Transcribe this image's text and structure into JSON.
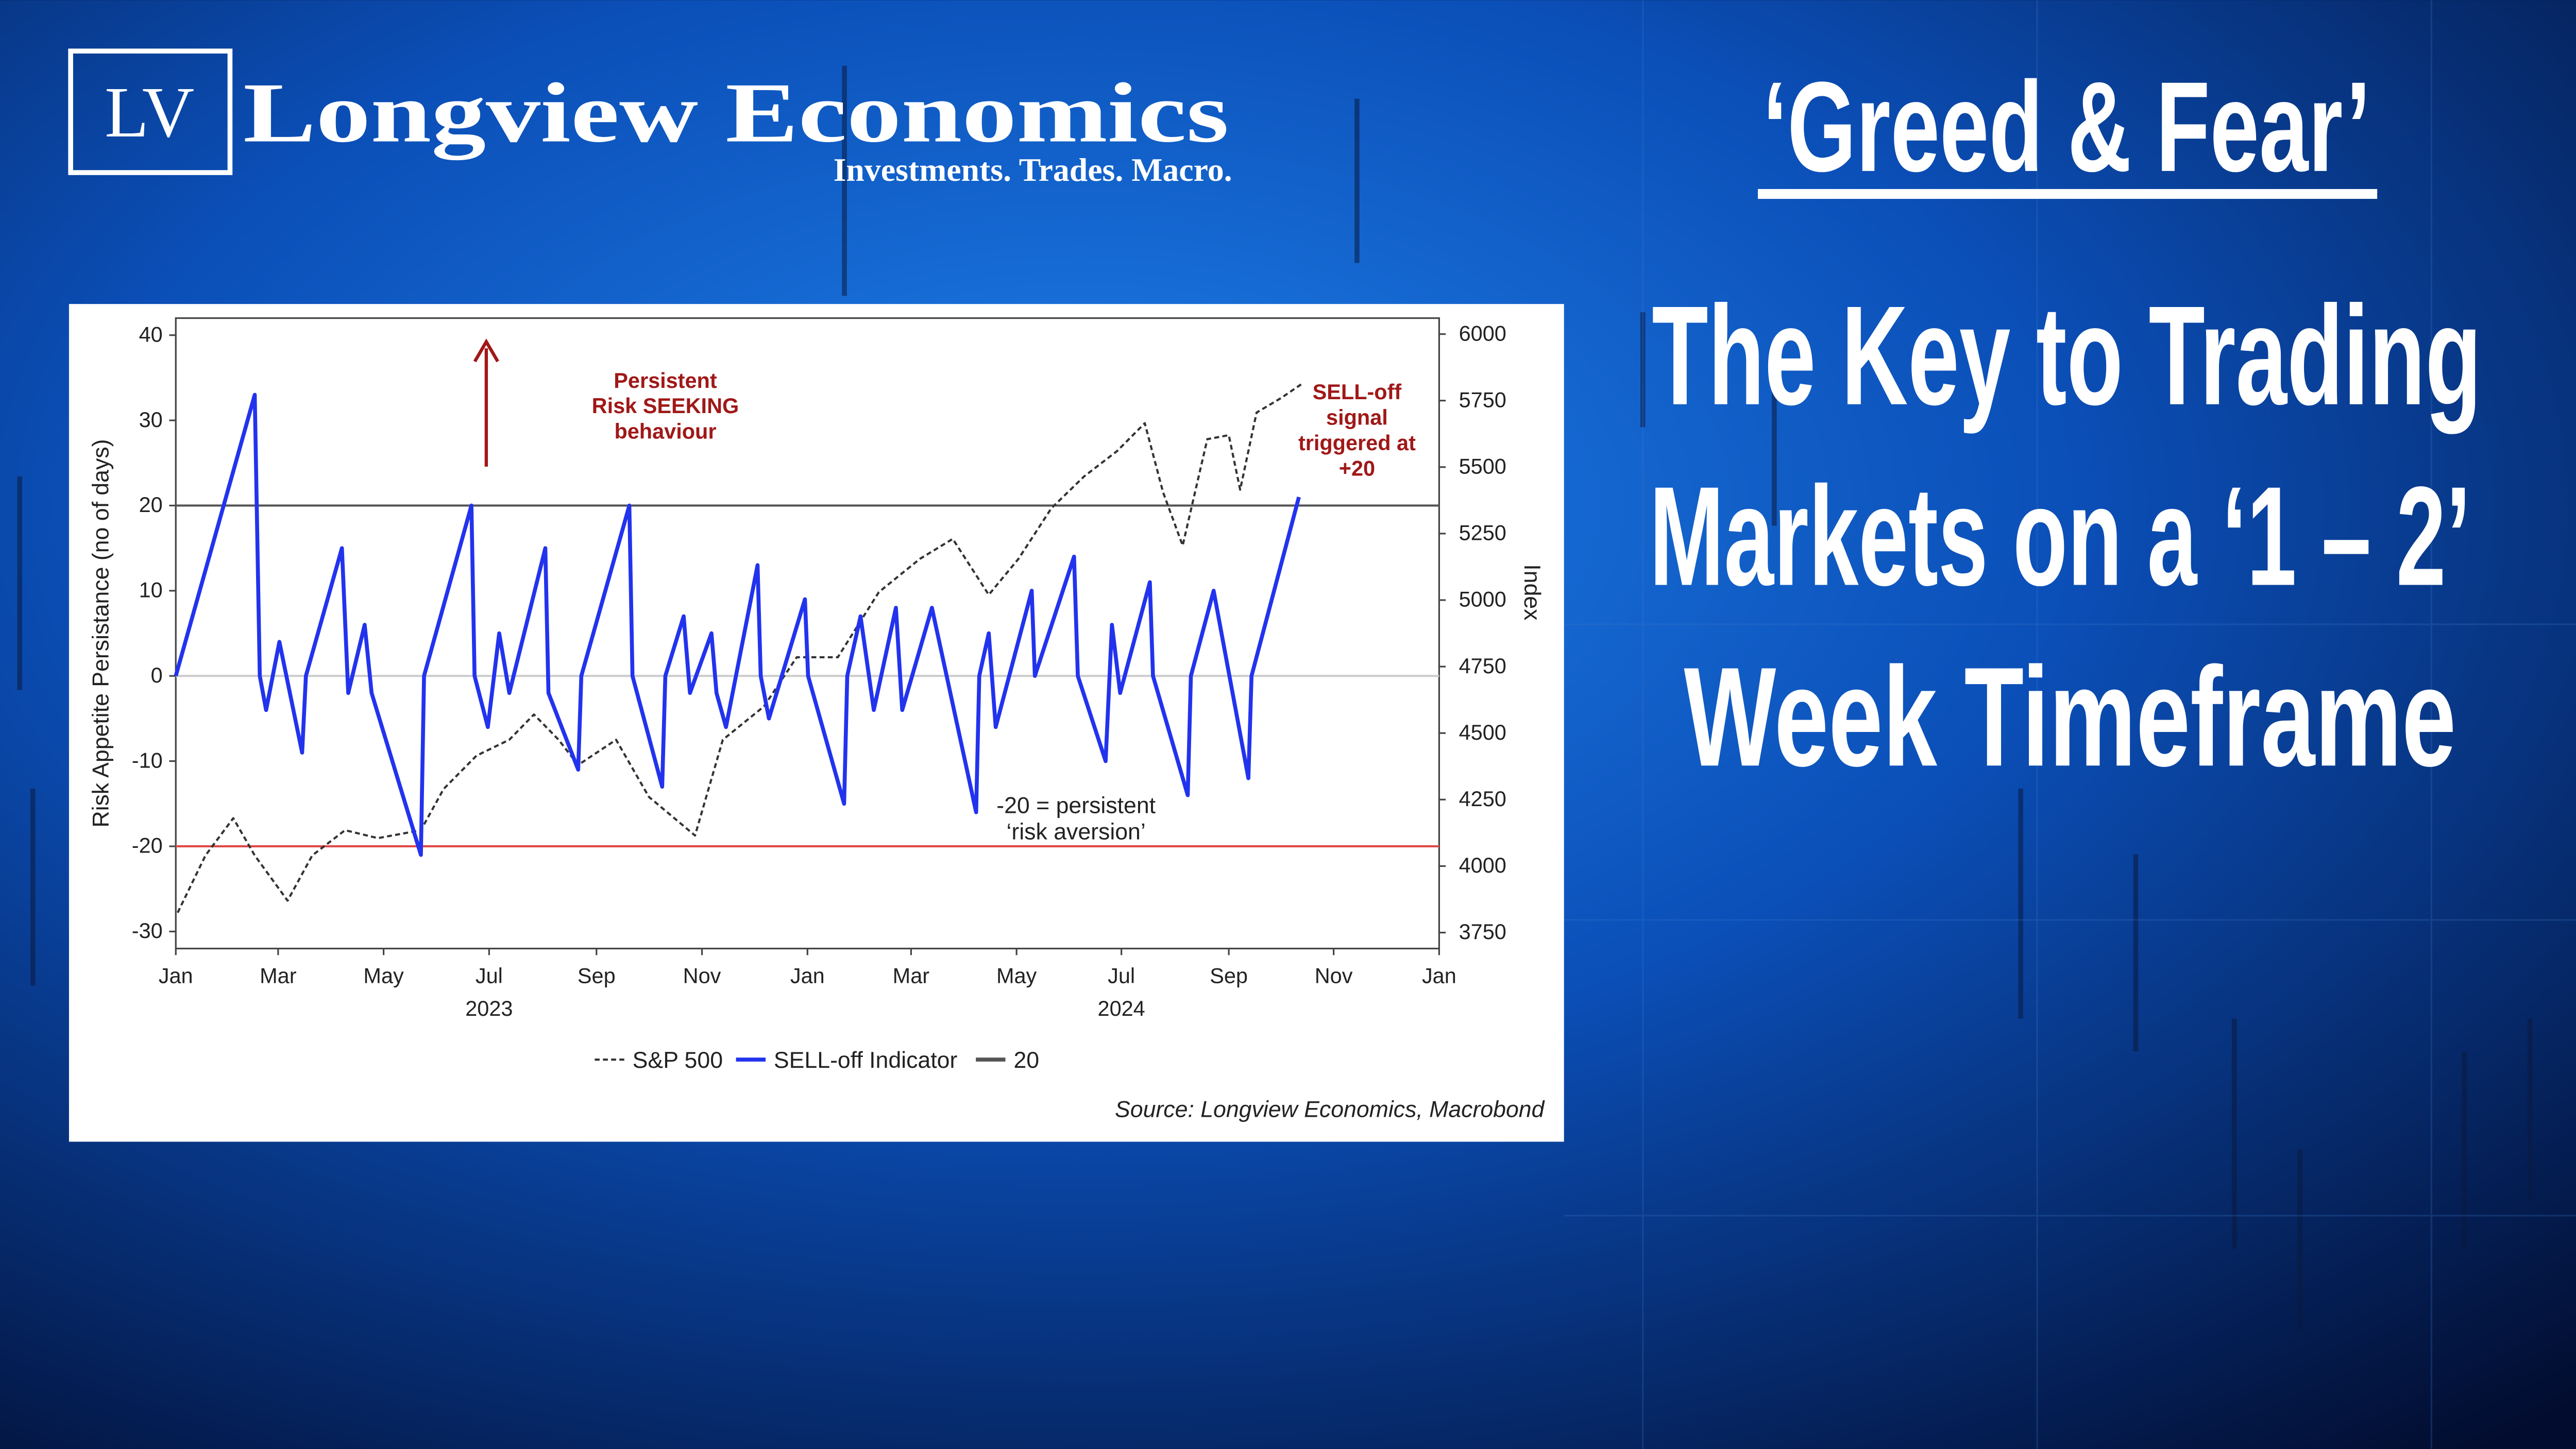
{
  "header": {
    "logo_mark": "LV",
    "brand": "Longview Economics",
    "tagline": "Investments. Trades. Macro.",
    "title": "‘Greed & Fear’",
    "headline": [
      "The Key to Trading",
      "Markets on a ‘1 – 2’",
      "Week Timeframe"
    ]
  },
  "chart_data": {
    "type": "line",
    "y_label": "Risk Appetite Persistance (no of days)",
    "y2_label": "Index",
    "xlim": [
      2023,
      2025
    ],
    "xticks": [
      {
        "value": 2023.0,
        "label": "Jan"
      },
      {
        "value": 2023.162,
        "label": "Mar"
      },
      {
        "value": 2023.329,
        "label": "May"
      },
      {
        "value": 2023.496,
        "label": "Jul"
      },
      {
        "value": 2023.666,
        "label": "Sep"
      },
      {
        "value": 2023.833,
        "label": "Nov"
      },
      {
        "value": 2024.0,
        "label": "Jan"
      },
      {
        "value": 2024.164,
        "label": "Mar"
      },
      {
        "value": 2024.331,
        "label": "May"
      },
      {
        "value": 2024.497,
        "label": "Jul"
      },
      {
        "value": 2024.667,
        "label": "Sep"
      },
      {
        "value": 2024.833,
        "label": "Nov"
      },
      {
        "value": 2025.0,
        "label": "Jan"
      }
    ],
    "x_year_labels": [
      {
        "value": 2023.496,
        "label": "2023"
      },
      {
        "value": 2024.497,
        "label": "2024"
      }
    ],
    "ylim": [
      -32,
      42
    ],
    "yticks": [
      -30,
      -20,
      -10,
      0,
      10,
      20,
      30,
      40
    ],
    "y2lim": [
      3690,
      6060
    ],
    "y2ticks": [
      3750,
      4000,
      4250,
      4500,
      4750,
      5000,
      5250,
      5500,
      5750,
      6000
    ],
    "reference_lines": [
      {
        "name": "20",
        "value": 20,
        "color": "#555555"
      },
      {
        "value": -20,
        "color": "#e04848"
      },
      {
        "value": 0,
        "color": "#cccccc"
      }
    ],
    "series": [
      {
        "name": "S&P 500",
        "color": "#333333",
        "axis": "y2",
        "dashed": true,
        "x": [
          2023.003,
          2023.047,
          2023.091,
          2023.125,
          2023.177,
          2023.216,
          2023.268,
          2023.32,
          2023.388,
          2023.424,
          2023.476,
          2023.528,
          2023.567,
          2023.606,
          2023.637,
          2023.697,
          2023.749,
          2023.822,
          2023.866,
          2023.931,
          2023.983,
          2024.048,
          2024.113,
          2024.178,
          2024.23,
          2024.287,
          2024.334,
          2024.386,
          2024.438,
          2024.49,
          2024.534,
          2024.563,
          2024.594,
          2024.633,
          2024.667,
          2024.685,
          2024.711,
          2024.75,
          2024.784
        ],
        "values": [
          3825,
          4040,
          4180,
          4040,
          3870,
          4040,
          4135,
          4105,
          4135,
          4290,
          4415,
          4475,
          4570,
          4475,
          4380,
          4475,
          4260,
          4115,
          4475,
          4600,
          4785,
          4785,
          5030,
          5155,
          5230,
          5020,
          5155,
          5345,
          5465,
          5560,
          5665,
          5405,
          5205,
          5605,
          5620,
          5415,
          5705,
          5760,
          5815
        ]
      },
      {
        "name": "SELL-off Indicator",
        "color": "#2233ee",
        "x": [
          2023.0,
          2023.125,
          2023.133,
          2023.143,
          2023.164,
          2023.2,
          2023.206,
          2023.263,
          2023.273,
          2023.299,
          2023.31,
          2023.388,
          2023.393,
          2023.468,
          2023.473,
          2023.494,
          2023.512,
          2023.528,
          2023.585,
          2023.59,
          2023.637,
          2023.642,
          2023.718,
          2023.723,
          2023.77,
          2023.775,
          2023.804,
          2023.814,
          2023.848,
          2023.856,
          2023.871,
          2023.921,
          2023.926,
          2023.939,
          2023.996,
          2024.001,
          2024.058,
          2024.063,
          2024.084,
          2024.105,
          2024.14,
          2024.15,
          2024.197,
          2024.267,
          2024.272,
          2024.287,
          2024.298,
          2024.355,
          2024.36,
          2024.422,
          2024.428,
          2024.472,
          2024.482,
          2024.495,
          2024.542,
          2024.547,
          2024.602,
          2024.607,
          2024.643,
          2024.698,
          2024.703,
          2024.778
        ],
        "values": [
          0,
          33,
          0,
          -4,
          4,
          -9,
          0,
          15,
          -2,
          6,
          -2,
          -21,
          0,
          20,
          0,
          -6,
          5,
          -2,
          15,
          -2,
          -11,
          0,
          20,
          0,
          -13,
          0,
          7,
          -2,
          5,
          -2,
          -6,
          13,
          0,
          -5,
          9,
          0,
          -15,
          0,
          7,
          -4,
          8,
          -4,
          8,
          -16,
          0,
          5,
          -6,
          10,
          0,
          14,
          0,
          -10,
          6,
          -2,
          11,
          0,
          -14,
          0,
          10,
          -12,
          0,
          21
        ]
      }
    ],
    "annotations": [
      {
        "lines": [
          "Persistent",
          "Risk SEEKING",
          "behaviour"
        ],
        "color": "#a01818"
      },
      {
        "lines": [
          "SELL-off",
          "signal",
          "triggered at",
          "+20"
        ],
        "color": "#a01818"
      },
      {
        "lines": [
          "-20 = persistent",
          "‘risk aversion’"
        ],
        "color": "#222222"
      }
    ],
    "source": "Source: Longview Economics, Macrobond"
  }
}
